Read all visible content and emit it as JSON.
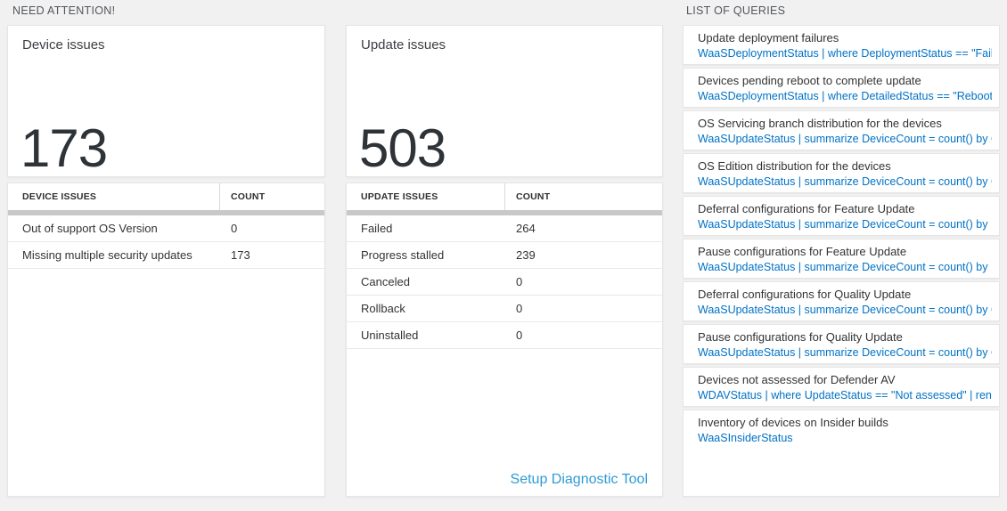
{
  "page": {
    "section_need_attention": "NEED ATTENTION!",
    "section_list_of_queries": "LIST OF QUERIES"
  },
  "colors": {
    "page_background": "#f1f1f2",
    "card_background": "#ffffff",
    "query_link_blue": "#0072c6",
    "setup_link_blue": "#2e9bd5",
    "big_number_dark": "#2e3338",
    "table_divider_gray": "#c8c8c8"
  },
  "device_tile": {
    "title": "Device issues",
    "count": "173"
  },
  "update_tile": {
    "title": "Update issues",
    "count": "503"
  },
  "device_table": {
    "headers": [
      "DEVICE ISSUES",
      "COUNT"
    ],
    "rows": [
      {
        "label": "Out of support OS Version",
        "count": "0"
      },
      {
        "label": "Missing multiple security updates",
        "count": "173"
      }
    ]
  },
  "update_table": {
    "headers": [
      "UPDATE ISSUES",
      "COUNT"
    ],
    "rows": [
      {
        "label": "Failed",
        "count": "264"
      },
      {
        "label": "Progress stalled",
        "count": "239"
      },
      {
        "label": "Canceled",
        "count": "0"
      },
      {
        "label": "Rollback",
        "count": "0"
      },
      {
        "label": "Uninstalled",
        "count": "0"
      }
    ],
    "footer_link": "Setup Diagnostic Tool"
  },
  "queries": {
    "items": [
      {
        "title": "Update deployment failures",
        "query": "WaaSDeploymentStatus | where DeploymentStatus == \"Failed\" |..."
      },
      {
        "title": "Devices pending reboot to complete update",
        "query": "WaaSDeploymentStatus | where DetailedStatus == \"Reboot pend..."
      },
      {
        "title": "OS Servicing branch distribution for the devices",
        "query": "WaaSUpdateStatus | summarize DeviceCount = count() by OSSer..."
      },
      {
        "title": "OS Edition distribution for the devices",
        "query": "WaaSUpdateStatus | summarize DeviceCount = count() by OSEdit..."
      },
      {
        "title": "Deferral configurations for Feature Update",
        "query": "WaaSUpdateStatus | summarize DeviceCount = count() by Featur..."
      },
      {
        "title": "Pause configurations for Feature Update",
        "query": "WaaSUpdateStatus | summarize DeviceCount = count() by Featur..."
      },
      {
        "title": "Deferral configurations for Quality Update",
        "query": "WaaSUpdateStatus | summarize DeviceCount = count() by Qualit..."
      },
      {
        "title": "Pause configurations for Quality Update",
        "query": "WaaSUpdateStatus | summarize DeviceCount = count() by Qualit..."
      },
      {
        "title": "Devices not assessed for Defender AV",
        "query": "WDAVStatus | where UpdateStatus == \"Not assessed\" | render ta..."
      },
      {
        "title": "Inventory of devices on Insider builds",
        "query": "WaaSInsiderStatus"
      }
    ]
  }
}
